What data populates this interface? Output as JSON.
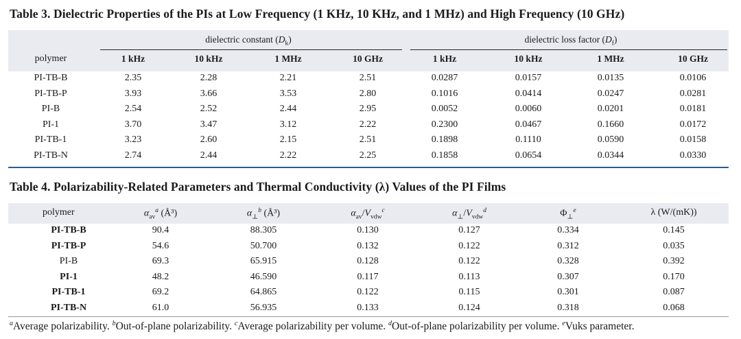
{
  "table3": {
    "title_label": "Table 3.",
    "title_text": "Dielectric Properties of the PIs at Low Frequency (1 KHz, 10 KHz, and 1 MHz) and High Frequency (10 GHz)",
    "group1": "dielectric constant",
    "group1_symbol": "D",
    "group1_sub": "k",
    "group2": "dielectric loss factor",
    "group2_symbol": "D",
    "group2_sub": "f",
    "columns": [
      "polymer",
      "1 kHz",
      "10 kHz",
      "1 MHz",
      "10 GHz",
      "1 kHz",
      "10 kHz",
      "1 MHz",
      "10 GHz"
    ],
    "rows": [
      [
        "PI-TB-B",
        "2.35",
        "2.28",
        "2.21",
        "2.51",
        "0.0287",
        "0.0157",
        "0.0135",
        "0.0106"
      ],
      [
        "PI-TB-P",
        "3.93",
        "3.66",
        "3.53",
        "2.80",
        "0.1016",
        "0.0414",
        "0.0247",
        "0.0281"
      ],
      [
        "PI-B",
        "2.54",
        "2.52",
        "2.44",
        "2.95",
        "0.0052",
        "0.0060",
        "0.0201",
        "0.0181"
      ],
      [
        "PI-1",
        "3.70",
        "3.47",
        "3.12",
        "2.22",
        "0.2300",
        "0.0467",
        "0.1660",
        "0.0172"
      ],
      [
        "PI-TB-1",
        "3.23",
        "2.60",
        "2.15",
        "2.51",
        "0.1898",
        "0.1110",
        "0.0590",
        "0.0158"
      ],
      [
        "PI-TB-N",
        "2.74",
        "2.44",
        "2.22",
        "2.25",
        "0.1858",
        "0.0654",
        "0.0344",
        "0.0330"
      ]
    ]
  },
  "table4": {
    "title_label": "Table 4.",
    "title_text": "Polarizability-Related Parameters and Thermal Conductivity (λ) Values of the PI Films",
    "columns": {
      "polymer": "polymer",
      "c1": "α",
      "c1_sub": "av",
      "c1_sup": "a",
      "c1_unit": "(Å³)",
      "c2": "α",
      "c2_sub": "⊥",
      "c2_sup": "b",
      "c2_unit": "(Å³)",
      "c3_num": "α",
      "c3_num_sub": "av",
      "c3_den": "V",
      "c3_den_sub": "vdw",
      "c3_sup": "c",
      "c4_num": "α",
      "c4_num_sub": "⊥",
      "c4_den": "V",
      "c4_den_sub": "vdw",
      "c4_sup": "d",
      "c5": "Φ",
      "c5_sub": "⊥",
      "c5_sup": "e",
      "c6": "λ (W/(mK))"
    },
    "rows": [
      [
        "PI-TB-B",
        "90.4",
        "88.305",
        "0.130",
        "0.127",
        "0.334",
        "0.145"
      ],
      [
        "PI-TB-P",
        "54.6",
        "50.700",
        "0.132",
        "0.122",
        "0.312",
        "0.035"
      ],
      [
        "PI-B",
        "69.3",
        "65.915",
        "0.128",
        "0.122",
        "0.328",
        "0.392"
      ],
      [
        "PI-1",
        "48.2",
        "46.590",
        "0.117",
        "0.113",
        "0.307",
        "0.170"
      ],
      [
        "PI-TB-1",
        "69.2",
        "64.865",
        "0.122",
        "0.115",
        "0.301",
        "0.087"
      ],
      [
        "PI-TB-N",
        "61.0",
        "56.935",
        "0.133",
        "0.124",
        "0.318",
        "0.068"
      ]
    ]
  },
  "footnotes": [
    {
      "mark": "a",
      "text": "Average polarizability."
    },
    {
      "mark": "b",
      "text": "Out-of-plane polarizability."
    },
    {
      "mark": "c",
      "text": "Average polarizability per volume."
    },
    {
      "mark": "d",
      "text": "Out-of-plane polarizability per volume."
    },
    {
      "mark": "e",
      "text": "Vuks parameter."
    }
  ],
  "colors": {
    "header_band": "#e9ebf1",
    "rule_accent": "#2c5b93"
  }
}
